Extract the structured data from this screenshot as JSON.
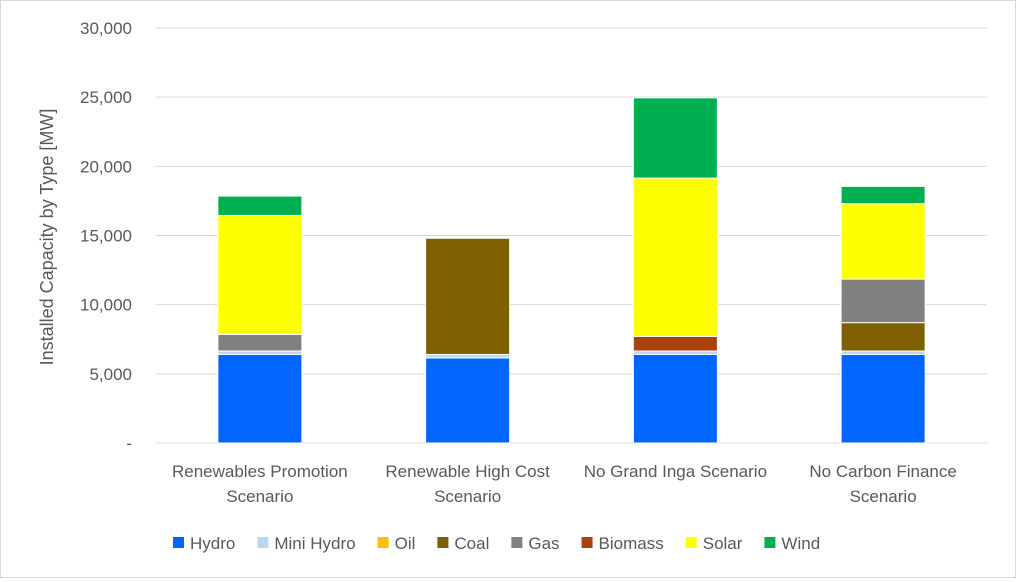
{
  "chart_data": {
    "type": "bar",
    "stacked": true,
    "ylabel": "Installed Capacity by Type [MW]",
    "ylim": [
      0,
      30000
    ],
    "yticks": [
      0,
      5000,
      10000,
      15000,
      20000,
      25000,
      30000
    ],
    "ytick_labels": [
      "-",
      "5,000",
      "10,000",
      "15,000",
      "20,000",
      "25,000",
      "30,000"
    ],
    "grid": true,
    "legend_position": "bottom",
    "categories": [
      [
        "Renewables Promotion",
        "Scenario"
      ],
      [
        "Renewable High Cost",
        "Scenario"
      ],
      [
        "No Grand Inga Scenario"
      ],
      [
        "No Carbon Finance",
        "Scenario"
      ]
    ],
    "series": [
      {
        "name": "Hydro",
        "color": "#0066FF",
        "values": [
          6400,
          6150,
          6400,
          6400
        ]
      },
      {
        "name": "Mini Hydro",
        "color": "#BDD7EE",
        "values": [
          250,
          250,
          250,
          250
        ]
      },
      {
        "name": "Oil",
        "color": "#FFC000",
        "values": [
          0,
          0,
          0,
          0
        ]
      },
      {
        "name": "Coal",
        "color": "#7F6000",
        "values": [
          0,
          8400,
          0,
          2050
        ]
      },
      {
        "name": "Gas",
        "color": "#808080",
        "values": [
          1200,
          0,
          0,
          3150
        ]
      },
      {
        "name": "Biomass",
        "color": "#A9420C",
        "values": [
          0,
          0,
          1050,
          0
        ]
      },
      {
        "name": "Solar",
        "color": "#FFFF00",
        "values": [
          8600,
          0,
          11450,
          5450
        ]
      },
      {
        "name": "Wind",
        "color": "#00B050",
        "values": [
          1400,
          0,
          5800,
          1250
        ]
      }
    ]
  }
}
